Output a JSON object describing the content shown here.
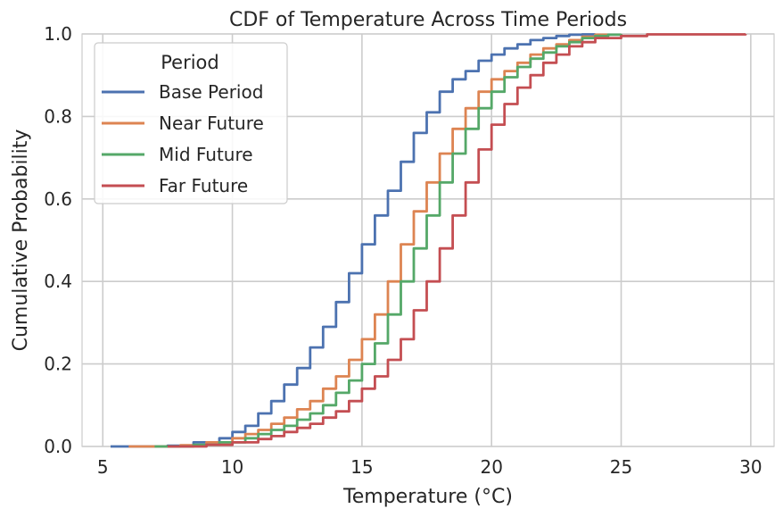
{
  "chart_data": {
    "type": "line",
    "title": "CDF of Temperature Across Time Periods",
    "xlabel": "Temperature (°C)",
    "ylabel": "Cumulative Probability",
    "xlim": [
      4.2,
      30.9
    ],
    "ylim": [
      0.0,
      1.0
    ],
    "xticks": [
      5,
      10,
      15,
      20,
      25,
      30
    ],
    "yticks": [
      0.0,
      0.2,
      0.4,
      0.6,
      0.8,
      1.0
    ],
    "xtick_labels": [
      "5",
      "10",
      "15",
      "20",
      "25",
      "30"
    ],
    "ytick_labels": [
      "0.0",
      "0.2",
      "0.4",
      "0.6",
      "0.8",
      "1.0"
    ],
    "grid": true,
    "legend": {
      "title": "Period",
      "placement": "top-left"
    },
    "series": [
      {
        "name": "Base Period",
        "color": "#4c72b0",
        "x": [
          5.3,
          7.5,
          8.5,
          9.5,
          10.0,
          10.5,
          11.0,
          11.5,
          12.0,
          12.5,
          13.0,
          13.5,
          14.0,
          14.5,
          15.0,
          15.5,
          16.0,
          16.5,
          17.0,
          17.5,
          18.0,
          18.5,
          19.0,
          19.5,
          20.0,
          20.5,
          21.0,
          21.5,
          22.0,
          22.5,
          23.0,
          23.5,
          24.0
        ],
        "y": [
          0.0,
          0.002,
          0.01,
          0.02,
          0.035,
          0.05,
          0.08,
          0.11,
          0.15,
          0.19,
          0.24,
          0.29,
          0.35,
          0.42,
          0.49,
          0.56,
          0.62,
          0.69,
          0.76,
          0.81,
          0.86,
          0.89,
          0.91,
          0.935,
          0.95,
          0.965,
          0.975,
          0.985,
          0.99,
          0.995,
          0.998,
          0.999,
          1.0
        ]
      },
      {
        "name": "Near Future",
        "color": "#dd8452",
        "x": [
          6.0,
          8.0,
          9.0,
          10.0,
          10.5,
          11.0,
          11.5,
          12.0,
          12.5,
          13.0,
          13.5,
          14.0,
          14.5,
          15.0,
          15.5,
          16.0,
          16.5,
          17.0,
          17.5,
          18.0,
          18.5,
          19.0,
          19.5,
          20.0,
          20.5,
          21.0,
          21.5,
          22.0,
          22.5,
          23.0,
          23.5,
          24.0,
          24.5
        ],
        "y": [
          0.0,
          0.003,
          0.01,
          0.02,
          0.03,
          0.04,
          0.055,
          0.07,
          0.09,
          0.11,
          0.14,
          0.17,
          0.21,
          0.26,
          0.32,
          0.4,
          0.49,
          0.57,
          0.64,
          0.71,
          0.77,
          0.82,
          0.86,
          0.89,
          0.91,
          0.93,
          0.95,
          0.965,
          0.975,
          0.985,
          0.993,
          0.998,
          1.0
        ]
      },
      {
        "name": "Mid Future",
        "color": "#55a868",
        "x": [
          7.0,
          8.5,
          9.5,
          10.5,
          11.0,
          11.5,
          12.0,
          12.5,
          13.0,
          13.5,
          14.0,
          14.5,
          15.0,
          15.5,
          16.0,
          16.5,
          17.0,
          17.5,
          18.0,
          18.5,
          19.0,
          19.5,
          20.0,
          20.5,
          21.0,
          21.5,
          22.0,
          22.5,
          23.0,
          23.5,
          24.0,
          24.5,
          25.0
        ],
        "y": [
          0.0,
          0.004,
          0.01,
          0.02,
          0.03,
          0.04,
          0.05,
          0.065,
          0.08,
          0.1,
          0.13,
          0.16,
          0.2,
          0.25,
          0.32,
          0.4,
          0.48,
          0.56,
          0.64,
          0.71,
          0.77,
          0.82,
          0.86,
          0.895,
          0.92,
          0.94,
          0.955,
          0.97,
          0.98,
          0.99,
          0.995,
          0.998,
          1.0
        ]
      },
      {
        "name": "Far Future",
        "color": "#c44e52",
        "x": [
          7.5,
          9.0,
          10.0,
          11.0,
          11.5,
          12.0,
          12.5,
          13.0,
          13.5,
          14.0,
          14.5,
          15.0,
          15.5,
          16.0,
          16.5,
          17.0,
          17.5,
          18.0,
          18.5,
          19.0,
          19.5,
          20.0,
          20.5,
          21.0,
          21.5,
          22.0,
          22.5,
          23.0,
          23.5,
          24.0,
          25.0,
          26.0,
          29.8
        ],
        "y": [
          0.0,
          0.004,
          0.01,
          0.018,
          0.025,
          0.035,
          0.045,
          0.055,
          0.07,
          0.085,
          0.11,
          0.14,
          0.17,
          0.21,
          0.26,
          0.33,
          0.4,
          0.48,
          0.56,
          0.64,
          0.72,
          0.78,
          0.83,
          0.87,
          0.9,
          0.93,
          0.95,
          0.97,
          0.98,
          0.99,
          0.995,
          0.999,
          1.0
        ]
      }
    ]
  }
}
